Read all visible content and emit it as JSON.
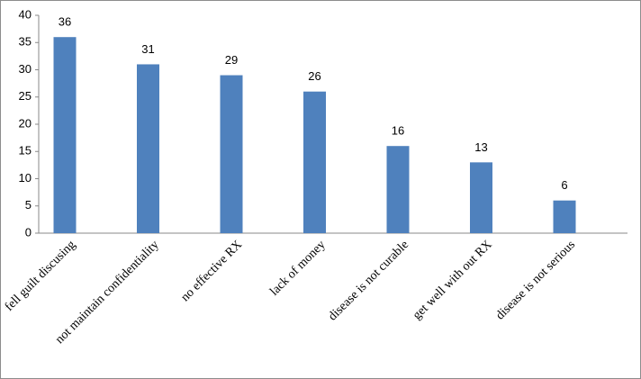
{
  "chart_data": {
    "type": "bar",
    "categories": [
      "fell guilt discusing",
      "not maintain confidentiality",
      "no effective RX",
      "lack of money",
      "disease is not curable",
      "get well with out RX",
      "disease is not serious"
    ],
    "values": [
      36,
      31,
      29,
      26,
      16,
      13,
      6
    ],
    "color": "#4f81bd",
    "ylim": [
      0,
      40
    ],
    "yticks": [
      0,
      5,
      10,
      15,
      20,
      25,
      30,
      35,
      40
    ],
    "grid": false
  }
}
